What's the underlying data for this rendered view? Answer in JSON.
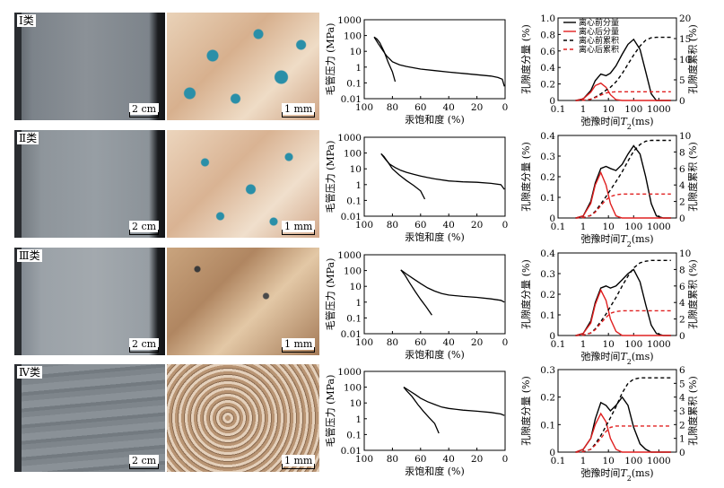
{
  "colors": {
    "before": "#000000",
    "after": "#e02020"
  },
  "photos": {
    "core_scale": "2 cm",
    "thin_scale": "1 mm"
  },
  "cp_axis": {
    "ylabel": "毛管压力 (MPa)",
    "xlabel": "汞饱和度 (%)",
    "yticks": [
      "1000",
      "100",
      "10",
      "1",
      "0.1",
      "0.01"
    ],
    "xticks": [
      "100",
      "80",
      "60",
      "40",
      "20",
      "0"
    ]
  },
  "nmr_axis": {
    "ylabel_left": "孔隙度分量 (%)",
    "ylabel_right": "孔隙度累积 (%)",
    "xlabel": "弛豫时间T2(ms)",
    "xlabel_main": "弛豫时间",
    "xlabel_var": "T",
    "xlabel_sub": "2",
    "xlabel_unit": "(ms)",
    "xticks": [
      "0.1",
      "1",
      "10",
      "100",
      "1000"
    ]
  },
  "legend": [
    "离心前分量",
    "离心后分量",
    "离心前累积",
    "离心后累积"
  ],
  "chart_data": [
    {
      "type": "line",
      "class": "Ⅰ类",
      "panel": "capillary_pressure",
      "xlim": [
        100,
        0
      ],
      "ylim": [
        0.01,
        1000
      ],
      "ylog": true,
      "series": [
        {
          "x": [
            93,
            90,
            87,
            84,
            80,
            75,
            70,
            60,
            50,
            40,
            30,
            20,
            10,
            5,
            2,
            0.5
          ],
          "y": [
            80,
            30,
            12,
            5,
            2.2,
            1.4,
            1.1,
            0.75,
            0.6,
            0.48,
            0.4,
            0.33,
            0.27,
            0.22,
            0.17,
            0.06
          ]
        },
        {
          "x": [
            93,
            91,
            89,
            86,
            83,
            80,
            78
          ],
          "y": [
            80,
            60,
            35,
            10,
            2,
            0.5,
            0.12
          ]
        }
      ]
    },
    {
      "type": "line",
      "class": "Ⅰ类",
      "panel": "nmr_t2",
      "xlog": true,
      "xlim": [
        0.1,
        5000
      ],
      "ylim": [
        0,
        1.0
      ],
      "y2lim": [
        0,
        20
      ],
      "yticks": [
        "0",
        "0.2",
        "0.4",
        "0.6",
        "0.8",
        "1.0"
      ],
      "y2ticks": [
        "0",
        "5",
        "10",
        "15",
        "20"
      ],
      "x": [
        0.5,
        1,
        2,
        3,
        5,
        8,
        12,
        20,
        35,
        60,
        100,
        180,
        300,
        500,
        800,
        1500,
        3000
      ],
      "series": [
        {
          "name": "离心前分量",
          "values": [
            0,
            0.02,
            0.12,
            0.24,
            0.32,
            0.3,
            0.33,
            0.42,
            0.56,
            0.68,
            0.74,
            0.62,
            0.35,
            0.08,
            0.0,
            0,
            0
          ]
        },
        {
          "name": "离心后分量",
          "values": [
            0,
            0.02,
            0.1,
            0.18,
            0.21,
            0.16,
            0.07,
            0.01,
            0,
            0,
            0,
            0,
            0,
            0,
            0,
            0,
            0
          ]
        },
        {
          "name": "离心前累积",
          "values": [
            0,
            0.05,
            0.3,
            0.8,
            1.6,
            2.5,
            3.2,
            4.5,
            6.5,
            8.8,
            11,
            13.2,
            14.6,
            15.2,
            15.3,
            15.3,
            15.3
          ]
        },
        {
          "name": "离心后累积",
          "values": [
            0,
            0.05,
            0.3,
            0.7,
            1.3,
            1.8,
            2.0,
            2.1,
            2.1,
            2.1,
            2.1,
            2.1,
            2.1,
            2.1,
            2.1,
            2.1,
            2.1
          ]
        }
      ]
    },
    {
      "type": "line",
      "class": "Ⅱ类",
      "panel": "capillary_pressure",
      "xlim": [
        100,
        0
      ],
      "ylim": [
        0.01,
        1000
      ],
      "ylog": true,
      "series": [
        {
          "x": [
            88,
            85,
            82,
            78,
            74,
            70,
            65,
            60,
            55,
            50,
            40,
            30,
            20,
            10,
            3,
            0.5
          ],
          "y": [
            90,
            40,
            20,
            12,
            8,
            6,
            4.5,
            3.5,
            2.8,
            2.3,
            1.7,
            1.5,
            1.4,
            1.2,
            1.0,
            0.5
          ]
        },
        {
          "x": [
            88,
            86,
            83,
            80,
            75,
            70,
            65,
            60,
            57
          ],
          "y": [
            90,
            60,
            25,
            10,
            4,
            1.8,
            0.9,
            0.4,
            0.12
          ]
        }
      ]
    },
    {
      "type": "line",
      "class": "Ⅱ类",
      "panel": "nmr_t2",
      "xlog": true,
      "xlim": [
        0.1,
        5000
      ],
      "ylim": [
        0,
        0.4
      ],
      "y2lim": [
        0,
        10
      ],
      "yticks": [
        "0",
        "0.1",
        "0.2",
        "0.3",
        "0.4"
      ],
      "y2ticks": [
        "0",
        "2",
        "4",
        "6",
        "8",
        "10"
      ],
      "x": [
        0.5,
        1,
        2,
        3,
        5,
        8,
        12,
        20,
        35,
        60,
        100,
        180,
        300,
        500,
        800,
        1500,
        3000
      ],
      "series": [
        {
          "name": "离心前分量",
          "values": [
            0,
            0.01,
            0.08,
            0.17,
            0.24,
            0.25,
            0.24,
            0.23,
            0.26,
            0.31,
            0.35,
            0.31,
            0.2,
            0.07,
            0.01,
            0,
            0
          ]
        },
        {
          "name": "离心后分量",
          "values": [
            0,
            0.01,
            0.07,
            0.16,
            0.22,
            0.16,
            0.07,
            0.01,
            0,
            0,
            0,
            0,
            0,
            0,
            0,
            0,
            0
          ]
        },
        {
          "name": "离心前累积",
          "values": [
            0,
            0.05,
            0.3,
            0.8,
            1.7,
            2.6,
            3.4,
            4.4,
            5.6,
            6.9,
            8.1,
            8.9,
            9.3,
            9.4,
            9.4,
            9.4,
            9.4
          ]
        },
        {
          "name": "离心后累积",
          "values": [
            0,
            0.05,
            0.3,
            0.7,
            1.5,
            2.2,
            2.6,
            2.8,
            2.9,
            2.9,
            2.9,
            2.9,
            2.9,
            2.9,
            2.9,
            2.9,
            2.9
          ]
        }
      ]
    },
    {
      "type": "line",
      "class": "Ⅲ类",
      "panel": "capillary_pressure",
      "xlim": [
        100,
        0
      ],
      "ylim": [
        0.01,
        1000
      ],
      "ylog": true,
      "series": [
        {
          "x": [
            74,
            70,
            65,
            60,
            55,
            50,
            45,
            40,
            30,
            20,
            10,
            3,
            0.5
          ],
          "y": [
            110,
            60,
            30,
            15,
            8,
            5,
            3.5,
            2.8,
            2.3,
            2.0,
            1.6,
            1.3,
            1.0
          ]
        },
        {
          "x": [
            74,
            71,
            68,
            64,
            60,
            56,
            52
          ],
          "y": [
            110,
            50,
            18,
            5,
            1.5,
            0.5,
            0.15
          ]
        }
      ]
    },
    {
      "type": "line",
      "class": "Ⅲ类",
      "panel": "nmr_t2",
      "xlog": true,
      "xlim": [
        0.1,
        5000
      ],
      "ylim": [
        0,
        0.4
      ],
      "y2lim": [
        0,
        10
      ],
      "yticks": [
        "0",
        "0.1",
        "0.2",
        "0.3",
        "0.4"
      ],
      "y2ticks": [
        "0",
        "2",
        "4",
        "6",
        "8",
        "10"
      ],
      "x": [
        0.5,
        1,
        2,
        3,
        5,
        8,
        12,
        20,
        35,
        60,
        100,
        180,
        300,
        500,
        800,
        1500,
        3000
      ],
      "series": [
        {
          "name": "离心前分量",
          "values": [
            0,
            0.01,
            0.07,
            0.16,
            0.23,
            0.24,
            0.23,
            0.24,
            0.27,
            0.3,
            0.32,
            0.26,
            0.15,
            0.05,
            0.01,
            0,
            0
          ]
        },
        {
          "name": "离心后分量",
          "values": [
            0,
            0.01,
            0.06,
            0.15,
            0.22,
            0.17,
            0.08,
            0.02,
            0,
            0,
            0,
            0,
            0,
            0,
            0,
            0,
            0
          ]
        },
        {
          "name": "离心前累积",
          "values": [
            0,
            0.05,
            0.3,
            0.8,
            1.7,
            2.6,
            3.5,
            4.6,
            6.0,
            7.2,
            8.2,
            8.8,
            9.0,
            9.1,
            9.1,
            9.1,
            9.1
          ]
        },
        {
          "name": "离心后累积",
          "values": [
            0,
            0.05,
            0.3,
            0.7,
            1.5,
            2.2,
            2.7,
            2.9,
            3.0,
            3.0,
            3.0,
            3.0,
            3.0,
            3.0,
            3.0,
            3.0,
            3.0
          ]
        }
      ]
    },
    {
      "type": "line",
      "class": "Ⅳ类",
      "panel": "capillary_pressure",
      "xlim": [
        100,
        0
      ],
      "ylim": [
        0.01,
        1000
      ],
      "ylog": true,
      "series": [
        {
          "x": [
            72,
            68,
            64,
            60,
            55,
            50,
            45,
            40,
            30,
            20,
            10,
            3,
            0.5
          ],
          "y": [
            100,
            60,
            35,
            20,
            12,
            8,
            5.5,
            4.5,
            3.5,
            3.0,
            2.5,
            2.0,
            1.6
          ]
        },
        {
          "x": [
            72,
            70,
            66,
            62,
            58,
            54,
            50,
            47
          ],
          "y": [
            100,
            60,
            25,
            8,
            3,
            1.2,
            0.5,
            0.12
          ]
        }
      ]
    },
    {
      "type": "line",
      "class": "Ⅳ类",
      "panel": "nmr_t2",
      "xlog": true,
      "xlim": [
        0.1,
        5000
      ],
      "ylim": [
        0,
        0.3
      ],
      "y2lim": [
        0,
        6
      ],
      "yticks": [
        "0",
        "0.1",
        "0.2",
        "0.3"
      ],
      "y2ticks": [
        "0",
        "1",
        "2",
        "3",
        "4",
        "5",
        "6"
      ],
      "x": [
        0.5,
        1,
        2,
        3,
        5,
        8,
        12,
        20,
        35,
        60,
        100,
        180,
        300,
        500,
        800,
        1500,
        3000
      ],
      "series": [
        {
          "name": "离心前分量",
          "values": [
            0,
            0.01,
            0.05,
            0.12,
            0.18,
            0.17,
            0.15,
            0.17,
            0.2,
            0.17,
            0.09,
            0.03,
            0.01,
            0,
            0,
            0,
            0
          ]
        },
        {
          "name": "离心后分量",
          "values": [
            0,
            0.01,
            0.05,
            0.1,
            0.14,
            0.11,
            0.05,
            0.01,
            0,
            0,
            0,
            0,
            0,
            0,
            0,
            0,
            0
          ]
        },
        {
          "name": "离心前累积",
          "values": [
            0,
            0.03,
            0.2,
            0.6,
            1.2,
            1.9,
            2.5,
            3.3,
            4.3,
            5.0,
            5.3,
            5.4,
            5.4,
            5.4,
            5.4,
            5.4,
            5.4
          ]
        },
        {
          "name": "离心后累积",
          "values": [
            0,
            0.03,
            0.2,
            0.5,
            1.0,
            1.5,
            1.8,
            1.9,
            1.9,
            1.9,
            1.9,
            1.9,
            1.9,
            1.9,
            1.9,
            1.9,
            1.9
          ]
        }
      ]
    }
  ]
}
